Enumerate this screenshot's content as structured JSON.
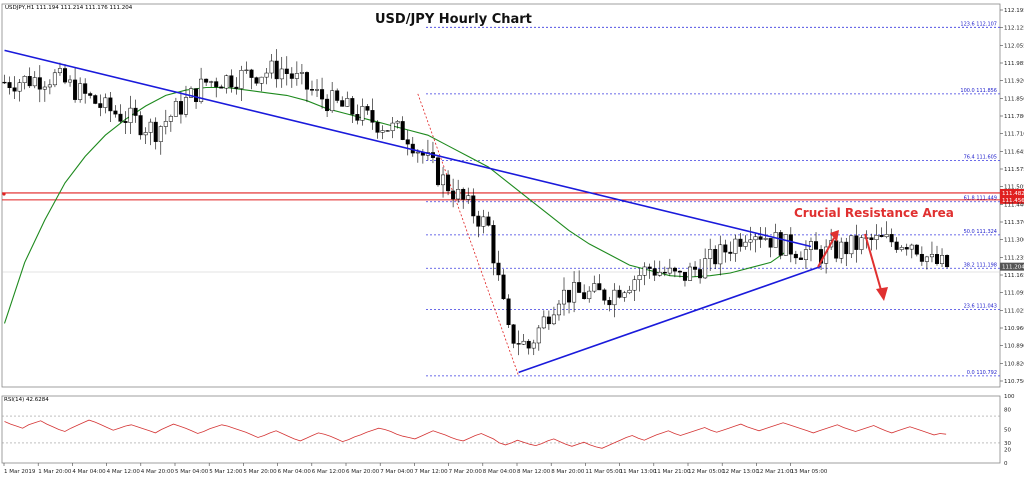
{
  "chart_data": {
    "type": "candlestick",
    "title": "USD/JPY Hourly Chart",
    "header": "USDJPY,H1  111.194 111.214 111.176 111.204",
    "annotation": "Crucial Resistance Area",
    "price_axis": {
      "range": [
        110.75,
        112.195
      ],
      "ticks": [
        "112.195",
        "112.125",
        "112.055",
        "111.985",
        "111.920",
        "111.850",
        "111.780",
        "111.710",
        "111.645",
        "111.575",
        "111.505",
        "111.440",
        "111.370",
        "111.300",
        "111.235",
        "111.165",
        "111.095",
        "111.025",
        "110.960",
        "110.890",
        "110.820",
        "110.750"
      ]
    },
    "time_axis": {
      "labels": [
        "1 Mar 2019",
        "1 Mar 20:00",
        "4 Mar 04:00",
        "4 Mar 12:00",
        "4 Mar 20:00",
        "5 Mar 04:00",
        "5 Mar 12:00",
        "5 Mar 20:00",
        "6 Mar 04:00",
        "6 Mar 12:00",
        "6 Mar 20:00",
        "7 Mar 04:00",
        "7 Mar 12:00",
        "7 Mar 20:00",
        "8 Mar 04:00",
        "8 Mar 12:00",
        "8 Mar 20:00",
        "11 Mar 05:00",
        "11 Mar 13:00",
        "11 Mar 21:00",
        "12 Mar 05:00",
        "12 Mar 13:00",
        "12 Mar 21:00",
        "13 Mar 05:00"
      ]
    },
    "current_price": "111.204",
    "resistance_levels": [
      {
        "label": "111.482",
        "value": 111.482
      },
      {
        "label": "111.456",
        "value": 111.456
      }
    ],
    "fibonacci_levels": [
      {
        "label": "123.6 112.107",
        "value": 112.107
      },
      {
        "label": "100.0 111.856",
        "value": 111.856
      },
      {
        "label": "76.4 111.605",
        "value": 111.605
      },
      {
        "label": "61.8 111.449",
        "value": 111.449
      },
      {
        "label": "50.0 111.324",
        "value": 111.324
      },
      {
        "label": "38.2 111.198",
        "value": 111.198
      },
      {
        "label": "23.6 111.043",
        "value": 111.043
      },
      {
        "label": "0.0 110.792",
        "value": 110.792
      }
    ],
    "trendlines": [
      {
        "name": "upper",
        "points": [
          [
            0,
            112.02
          ],
          [
            160,
            111.28
          ]
        ]
      },
      {
        "name": "lower",
        "points": [
          [
            102,
            110.805
          ],
          [
            162,
            111.205
          ]
        ]
      }
    ],
    "swing": [
      [
        82,
        111.856
      ],
      [
        102,
        110.792
      ]
    ],
    "moving_average": [
      [
        0,
        110.99
      ],
      [
        4,
        111.22
      ],
      [
        8,
        111.38
      ],
      [
        12,
        111.52
      ],
      [
        16,
        111.62
      ],
      [
        20,
        111.7
      ],
      [
        24,
        111.76
      ],
      [
        28,
        111.81
      ],
      [
        32,
        111.85
      ],
      [
        36,
        111.87
      ],
      [
        40,
        111.88
      ],
      [
        44,
        111.88
      ],
      [
        48,
        111.87
      ],
      [
        52,
        111.86
      ],
      [
        56,
        111.85
      ],
      [
        60,
        111.83
      ],
      [
        64,
        111.8
      ],
      [
        68,
        111.78
      ],
      [
        72,
        111.76
      ],
      [
        76,
        111.74
      ],
      [
        80,
        111.72
      ],
      [
        84,
        111.7
      ],
      [
        88,
        111.66
      ],
      [
        92,
        111.62
      ],
      [
        96,
        111.58
      ],
      [
        100,
        111.52
      ],
      [
        104,
        111.46
      ],
      [
        108,
        111.4
      ],
      [
        112,
        111.34
      ],
      [
        116,
        111.29
      ],
      [
        120,
        111.25
      ],
      [
        124,
        111.21
      ],
      [
        128,
        111.19
      ],
      [
        132,
        111.17
      ],
      [
        136,
        111.165
      ],
      [
        140,
        111.17
      ],
      [
        144,
        111.18
      ],
      [
        148,
        111.2
      ],
      [
        152,
        111.22
      ],
      [
        155,
        111.26
      ]
    ],
    "rsi": {
      "label": "RSI(14) 42.6284",
      "range": [
        0,
        100
      ],
      "ticks": [
        "100",
        "80",
        "50",
        "30",
        "20",
        "0"
      ],
      "levels": [
        70,
        30
      ],
      "values": [
        62,
        58,
        55,
        52,
        57,
        60,
        63,
        58,
        54,
        50,
        47,
        52,
        56,
        60,
        64,
        61,
        57,
        53,
        49,
        52,
        55,
        57,
        54,
        51,
        48,
        45,
        50,
        54,
        58,
        55,
        52,
        48,
        44,
        47,
        51,
        54,
        57,
        55,
        52,
        49,
        46,
        42,
        38,
        41,
        45,
        48,
        44,
        40,
        36,
        33,
        37,
        41,
        45,
        43,
        40,
        36,
        32,
        35,
        39,
        42,
        46,
        49,
        52,
        50,
        47,
        43,
        40,
        38,
        36,
        40,
        44,
        48,
        45,
        42,
        38,
        35,
        33,
        37,
        41,
        44,
        40,
        36,
        30,
        27,
        30,
        34,
        31,
        28,
        26,
        29,
        33,
        36,
        32,
        28,
        25,
        28,
        31,
        27,
        24,
        22,
        26,
        30,
        34,
        38,
        41,
        37,
        34,
        38,
        42,
        45,
        48,
        44,
        41,
        44,
        47,
        50,
        53,
        49,
        46,
        49,
        52,
        55,
        58,
        54,
        51,
        48,
        51,
        54,
        57,
        60,
        57,
        54,
        51,
        48,
        45,
        48,
        51,
        54,
        57,
        53,
        50,
        47,
        50,
        53,
        56,
        52,
        48,
        45,
        48,
        51,
        54,
        51,
        48,
        45,
        42,
        44,
        43
      ]
    }
  },
  "colors": {
    "bull": "#ffffff",
    "bear": "#000000",
    "candle_outline": "#000000",
    "trendline": "#1a1adb",
    "moving_average": "#1e8a1e",
    "fibonacci": "#3a3ae0",
    "resistance": "#e02020",
    "annotation": "#e03030",
    "rsi": "#d43434",
    "grid": "#c8c8c8",
    "price_badge": "#555555"
  }
}
